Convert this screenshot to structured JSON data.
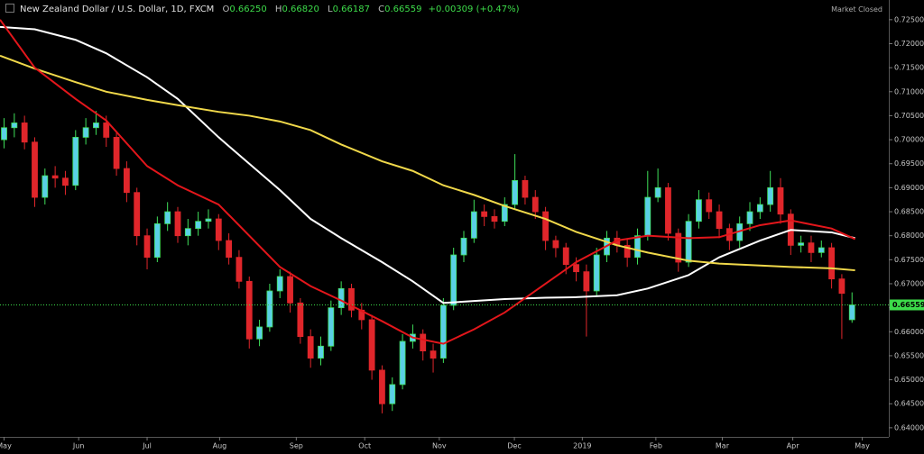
{
  "header": {
    "symbol": "New Zealand Dollar / U.S. Dollar, 1D, FXCM",
    "open_label": "O",
    "open": "0.66250",
    "high_label": "H",
    "high": "0.66820",
    "low_label": "L",
    "low": "0.66187",
    "close_label": "C",
    "close": "0.66559",
    "change": "+0.00309 (+0.47%)",
    "status": "Market Closed"
  },
  "chart_data": {
    "type": "candlestick",
    "x": [
      0,
      1,
      2,
      3,
      4,
      5,
      6,
      7,
      8,
      9,
      10,
      11,
      12,
      13,
      14,
      15,
      16,
      17,
      18,
      19,
      20,
      21,
      22,
      23,
      24,
      25,
      26,
      27,
      28,
      29,
      30,
      31,
      32,
      33,
      34,
      35,
      36,
      37,
      38,
      39,
      40,
      41,
      42,
      43,
      44,
      45,
      46,
      47,
      48,
      49,
      50,
      51,
      52,
      53,
      54,
      55,
      56,
      57,
      58,
      59,
      60,
      61,
      62,
      63,
      64,
      65,
      66,
      67,
      68,
      69,
      70,
      71,
      72,
      73,
      74,
      75,
      76,
      77,
      78,
      79,
      80,
      81,
      82,
      83
    ],
    "open": [
      0.7,
      0.7025,
      0.7035,
      0.6995,
      0.688,
      0.6925,
      0.692,
      0.6905,
      0.7005,
      0.7025,
      0.7035,
      0.7005,
      0.694,
      0.689,
      0.68,
      0.6755,
      0.6825,
      0.685,
      0.68,
      0.6815,
      0.683,
      0.6835,
      0.679,
      0.6755,
      0.6705,
      0.6585,
      0.661,
      0.6685,
      0.6715,
      0.666,
      0.659,
      0.6545,
      0.657,
      0.665,
      0.669,
      0.6645,
      0.6625,
      0.652,
      0.645,
      0.649,
      0.658,
      0.6595,
      0.656,
      0.6545,
      0.6655,
      0.676,
      0.6795,
      0.685,
      0.684,
      0.683,
      0.6865,
      0.6915,
      0.688,
      0.685,
      0.679,
      0.6775,
      0.674,
      0.6725,
      0.6685,
      0.676,
      0.6795,
      0.678,
      0.6755,
      0.68,
      0.688,
      0.69,
      0.6805,
      0.6745,
      0.683,
      0.6875,
      0.685,
      0.6815,
      0.679,
      0.6825,
      0.685,
      0.6865,
      0.69,
      0.6845,
      0.678,
      0.6785,
      0.6765,
      0.6775,
      0.671,
      0.6625
    ],
    "high": [
      0.7045,
      0.7055,
      0.705,
      0.7005,
      0.694,
      0.6945,
      0.6935,
      0.702,
      0.7045,
      0.706,
      0.705,
      0.7015,
      0.6955,
      0.69,
      0.6815,
      0.684,
      0.687,
      0.686,
      0.6835,
      0.685,
      0.6855,
      0.6845,
      0.6805,
      0.677,
      0.6715,
      0.6625,
      0.67,
      0.673,
      0.6725,
      0.667,
      0.6605,
      0.659,
      0.6665,
      0.6705,
      0.67,
      0.666,
      0.6635,
      0.653,
      0.6505,
      0.6595,
      0.6615,
      0.6605,
      0.6575,
      0.667,
      0.6775,
      0.681,
      0.6875,
      0.6865,
      0.6855,
      0.688,
      0.697,
      0.6925,
      0.6895,
      0.686,
      0.68,
      0.6785,
      0.6755,
      0.674,
      0.6775,
      0.681,
      0.681,
      0.6795,
      0.6815,
      0.6935,
      0.694,
      0.691,
      0.6815,
      0.6845,
      0.6895,
      0.689,
      0.6865,
      0.6825,
      0.684,
      0.687,
      0.688,
      0.6935,
      0.692,
      0.6855,
      0.68,
      0.68,
      0.679,
      0.6785,
      0.672,
      0.6682
    ],
    "low": [
      0.6982,
      0.7005,
      0.698,
      0.686,
      0.6865,
      0.69,
      0.6885,
      0.6895,
      0.699,
      0.701,
      0.6985,
      0.6925,
      0.687,
      0.678,
      0.673,
      0.6745,
      0.681,
      0.6785,
      0.678,
      0.68,
      0.6815,
      0.677,
      0.674,
      0.669,
      0.6565,
      0.657,
      0.66,
      0.667,
      0.664,
      0.6575,
      0.6525,
      0.653,
      0.656,
      0.6635,
      0.663,
      0.6605,
      0.65,
      0.643,
      0.6435,
      0.648,
      0.6565,
      0.654,
      0.6515,
      0.6535,
      0.6645,
      0.6745,
      0.6785,
      0.682,
      0.6815,
      0.682,
      0.6855,
      0.6865,
      0.6835,
      0.677,
      0.6755,
      0.672,
      0.6705,
      0.659,
      0.6675,
      0.6745,
      0.6765,
      0.6735,
      0.674,
      0.679,
      0.687,
      0.679,
      0.6725,
      0.6735,
      0.6815,
      0.6835,
      0.6795,
      0.677,
      0.6775,
      0.681,
      0.6835,
      0.685,
      0.6825,
      0.676,
      0.6765,
      0.6745,
      0.6755,
      0.669,
      0.6585,
      0.66187
    ],
    "close": [
      0.7025,
      0.7035,
      0.6995,
      0.688,
      0.6925,
      0.692,
      0.6905,
      0.7005,
      0.7025,
      0.7035,
      0.7005,
      0.694,
      0.689,
      0.68,
      0.6755,
      0.6825,
      0.685,
      0.68,
      0.6815,
      0.683,
      0.6835,
      0.679,
      0.6755,
      0.6705,
      0.6585,
      0.661,
      0.6685,
      0.6715,
      0.666,
      0.659,
      0.6545,
      0.657,
      0.665,
      0.669,
      0.6645,
      0.6625,
      0.652,
      0.645,
      0.649,
      0.658,
      0.6595,
      0.656,
      0.6545,
      0.6655,
      0.676,
      0.6795,
      0.685,
      0.684,
      0.683,
      0.6865,
      0.6915,
      0.688,
      0.685,
      0.679,
      0.6775,
      0.674,
      0.6725,
      0.6685,
      0.676,
      0.6795,
      0.678,
      0.6755,
      0.68,
      0.688,
      0.69,
      0.6805,
      0.6745,
      0.683,
      0.6875,
      0.685,
      0.6815,
      0.679,
      0.6825,
      0.685,
      0.6865,
      0.69,
      0.6845,
      0.678,
      0.6785,
      0.6765,
      0.6775,
      0.671,
      0.668,
      0.66559
    ],
    "up_color": "#5ad0e6",
    "up_wick_color": "#3fe05a",
    "down_color": "#e0262b",
    "ma_x": [
      -0.4,
      3,
      7,
      10,
      14,
      17,
      21,
      24,
      27,
      30,
      33,
      37,
      40,
      43,
      46,
      49,
      53,
      56,
      60,
      63,
      67,
      70,
      74,
      77,
      81,
      83.3
    ],
    "moving_averages": [
      {
        "color": "#ffffff",
        "values": [
          0.7235,
          0.723,
          0.7208,
          0.718,
          0.713,
          0.7085,
          0.7005,
          0.695,
          0.6895,
          0.6835,
          0.6795,
          0.6745,
          0.6705,
          0.666,
          0.6664,
          0.6668,
          0.6671,
          0.6672,
          0.6676,
          0.669,
          0.6718,
          0.6755,
          0.679,
          0.6812,
          0.6807,
          0.6795
        ]
      },
      {
        "color": "#f0d84a",
        "values": [
          0.7175,
          0.7148,
          0.712,
          0.71,
          0.7083,
          0.7072,
          0.7058,
          0.705,
          0.7038,
          0.702,
          0.699,
          0.6955,
          0.6935,
          0.6905,
          0.6885,
          0.6862,
          0.6835,
          0.6808,
          0.678,
          0.6765,
          0.6748,
          0.6742,
          0.6738,
          0.6735,
          0.6732,
          0.6728
        ]
      },
      {
        "color": "#e3161b",
        "values": [
          0.725,
          0.715,
          0.7085,
          0.704,
          0.6945,
          0.6905,
          0.6865,
          0.68,
          0.6735,
          0.6695,
          0.6665,
          0.6622,
          0.6588,
          0.6575,
          0.6605,
          0.664,
          0.67,
          0.6745,
          0.679,
          0.68,
          0.6795,
          0.6797,
          0.6822,
          0.6832,
          0.6815,
          0.6793
        ]
      }
    ],
    "price_tag": {
      "value": 0.66559,
      "label": "0.66559"
    },
    "price_tag_color": "#3ddc4a",
    "xlim": [
      -0.4,
      86.6
    ],
    "ylim": [
      0.6381,
      0.7291
    ],
    "xticks": [
      {
        "value": 0,
        "label": "May"
      },
      {
        "value": 7.3,
        "label": "Jun"
      },
      {
        "value": 14,
        "label": "Jul"
      },
      {
        "value": 21.1,
        "label": "Aug"
      },
      {
        "value": 28.6,
        "label": "Sep"
      },
      {
        "value": 35.3,
        "label": "Oct"
      },
      {
        "value": 42.6,
        "label": "Nov"
      },
      {
        "value": 49.95,
        "label": "Dec"
      },
      {
        "value": 56.6,
        "label": "2019"
      },
      {
        "value": 63.8,
        "label": "Feb"
      },
      {
        "value": 70.3,
        "label": "Mar"
      },
      {
        "value": 77.2,
        "label": "Apr"
      },
      {
        "value": 84,
        "label": "May"
      }
    ],
    "yticks": [
      {
        "value": 0.64,
        "label": "0.64000"
      },
      {
        "value": 0.645,
        "label": "0.64500"
      },
      {
        "value": 0.65,
        "label": "0.65000"
      },
      {
        "value": 0.655,
        "label": "0.65500"
      },
      {
        "value": 0.66,
        "label": "0.66000"
      },
      {
        "value": 0.665,
        "label": "0.66500"
      },
      {
        "value": 0.67,
        "label": "0.67000"
      },
      {
        "value": 0.675,
        "label": "0.67500"
      },
      {
        "value": 0.68,
        "label": "0.68000"
      },
      {
        "value": 0.685,
        "label": "0.68500"
      },
      {
        "value": 0.69,
        "label": "0.69000"
      },
      {
        "value": 0.695,
        "label": "0.69500"
      },
      {
        "value": 0.7,
        "label": "0.70000"
      },
      {
        "value": 0.705,
        "label": "0.70500"
      },
      {
        "value": 0.71,
        "label": "0.71000"
      },
      {
        "value": 0.715,
        "label": "0.71500"
      },
      {
        "value": 0.72,
        "label": "0.72000"
      },
      {
        "value": 0.725,
        "label": "0.72500"
      }
    ]
  }
}
